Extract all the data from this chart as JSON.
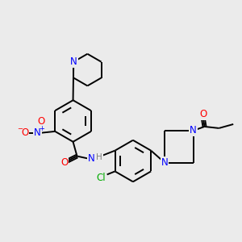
{
  "background_color": "#ebebeb",
  "bond_color": "#000000",
  "atom_colors": {
    "N": "#0000ff",
    "O": "#ff0000",
    "Cl": "#00aa00",
    "C": "#000000",
    "H": "#808080"
  }
}
